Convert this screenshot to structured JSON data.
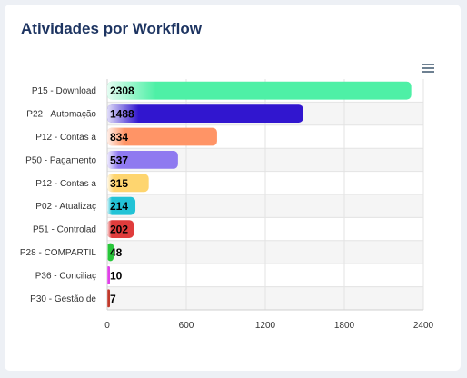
{
  "card": {
    "title": "Atividades por Workflow",
    "menu_icon": "hamburger-menu-icon"
  },
  "chart_data": {
    "type": "bar",
    "orientation": "horizontal",
    "title": "Atividades por Workflow",
    "categories": [
      "P15 - Download",
      "P22 - Automação",
      "P12 - Contas a",
      "P50 - Pagamento",
      "P12 - Contas a",
      "P02 - Atualizaç",
      "P51 - Controlad",
      "P28 - COMPARTIL",
      "P36 - Conciliaç",
      "P30 - Gestão de"
    ],
    "values": [
      2308,
      1488,
      834,
      537,
      315,
      214,
      202,
      48,
      10,
      7
    ],
    "colors": [
      "#4ef0a6",
      "#3116cf",
      "#ff9466",
      "#8f7af0",
      "#fed56f",
      "#22c3d6",
      "#e03c3c",
      "#28c63a",
      "#e040e8",
      "#c0392b"
    ],
    "xlim": [
      0,
      2400
    ],
    "xticks": [
      0,
      600,
      1200,
      1800,
      2400
    ],
    "xlabel": "",
    "ylabel": "",
    "grid": "vertical",
    "legend": "none"
  }
}
